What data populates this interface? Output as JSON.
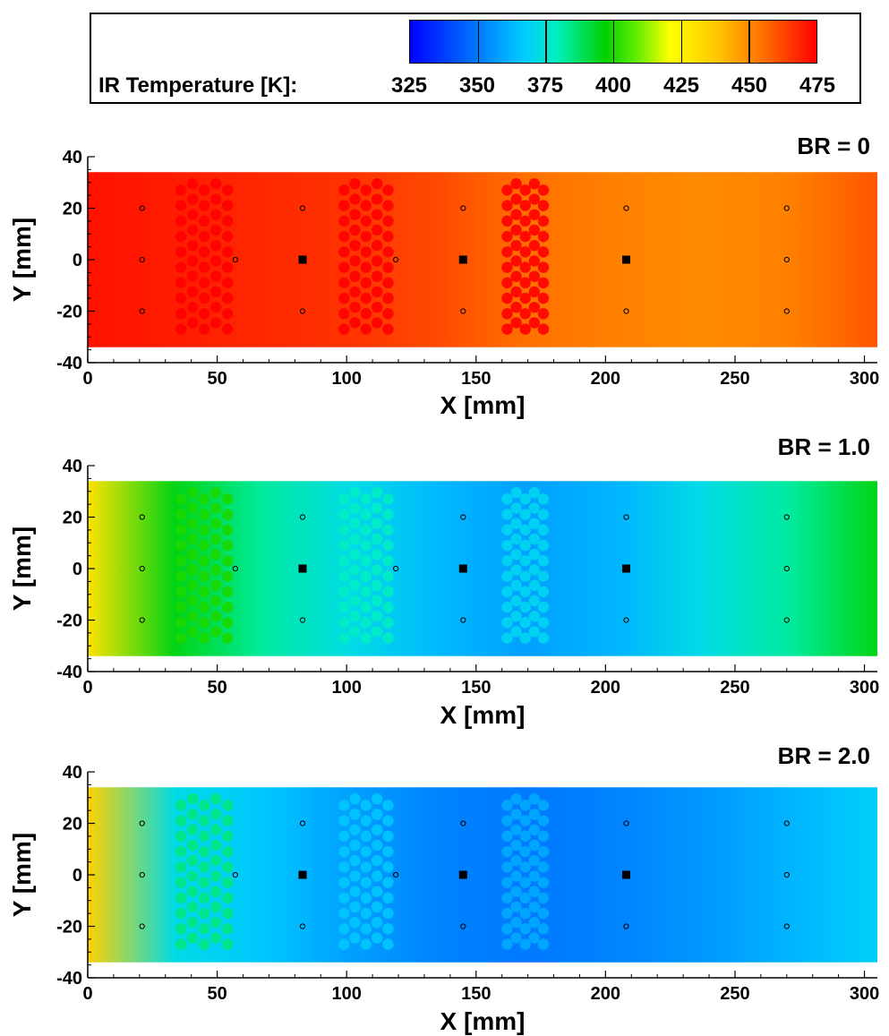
{
  "legend": {
    "title": "IR Temperature [K]:",
    "ticks": [
      "325",
      "350",
      "375",
      "400",
      "425",
      "450",
      "475"
    ],
    "range": [
      325,
      475
    ]
  },
  "chart_data": [
    {
      "type": "heatmap",
      "title": "BR = 0",
      "xlabel": "X [mm]",
      "ylabel": "Y [mm]",
      "xlim": [
        0,
        305
      ],
      "ylim": [
        -40,
        40
      ],
      "xticks": [
        "0",
        "50",
        "100",
        "150",
        "200",
        "250",
        "300"
      ],
      "yticks": [
        "40",
        "20",
        "0",
        "-20",
        "-40"
      ],
      "base_temperature_K": [
        472,
        470,
        468,
        466,
        462,
        455,
        452,
        450,
        452,
        460
      ],
      "hole_array_temperature_K": 475,
      "hole_arrays_x": [
        [
          34,
          56
        ],
        [
          97,
          118
        ],
        [
          160,
          178
        ]
      ],
      "square_markers_x": [
        83,
        145,
        208
      ],
      "circle_markers": [
        [
          21,
          20
        ],
        [
          21,
          0
        ],
        [
          21,
          -20
        ],
        [
          57,
          0
        ],
        [
          83,
          20
        ],
        [
          83,
          -20
        ],
        [
          119,
          0
        ],
        [
          145,
          20
        ],
        [
          145,
          -20
        ],
        [
          208,
          20
        ],
        [
          208,
          -20
        ],
        [
          270,
          20
        ],
        [
          270,
          0
        ],
        [
          270,
          -20
        ]
      ]
    },
    {
      "type": "heatmap",
      "title": "BR = 1.0",
      "xlabel": "X [mm]",
      "ylabel": "Y [mm]",
      "xlim": [
        0,
        305
      ],
      "ylim": [
        -40,
        40
      ],
      "xticks": [
        "0",
        "50",
        "100",
        "150",
        "200",
        "250",
        "300"
      ],
      "yticks": [
        "40",
        "20",
        "0",
        "-20",
        "-40"
      ],
      "base_temperature_K": [
        430,
        395,
        382,
        372,
        363,
        358,
        362,
        372,
        382,
        395
      ],
      "hole_array_temperature_K": [
        400,
        378,
        370
      ],
      "hole_arrays_x": [
        [
          34,
          56
        ],
        [
          97,
          118
        ],
        [
          160,
          178
        ]
      ],
      "square_markers_x": [
        83,
        145,
        208
      ],
      "circle_markers": [
        [
          21,
          20
        ],
        [
          21,
          0
        ],
        [
          21,
          -20
        ],
        [
          57,
          0
        ],
        [
          83,
          20
        ],
        [
          83,
          -20
        ],
        [
          119,
          0
        ],
        [
          145,
          20
        ],
        [
          145,
          -20
        ],
        [
          208,
          20
        ],
        [
          208,
          -20
        ],
        [
          270,
          20
        ],
        [
          270,
          0
        ],
        [
          270,
          -20
        ]
      ]
    },
    {
      "type": "heatmap",
      "title": "BR = 2.0",
      "xlabel": "X [mm]",
      "ylabel": "Y [mm]",
      "xlim": [
        0,
        305
      ],
      "ylim": [
        -40,
        40
      ],
      "xticks": [
        "0",
        "50",
        "100",
        "150",
        "200",
        "250",
        "300"
      ],
      "yticks": [
        "40",
        "20",
        "0",
        "-20",
        "-40"
      ],
      "base_temperature_K": [
        435,
        372,
        366,
        358,
        352,
        350,
        352,
        356,
        362,
        368
      ],
      "hole_array_temperature_K": [
        385,
        366,
        360
      ],
      "hole_arrays_x": [
        [
          34,
          56
        ],
        [
          97,
          118
        ],
        [
          160,
          178
        ]
      ],
      "square_markers_x": [
        83,
        145,
        208
      ],
      "circle_markers": [
        [
          21,
          20
        ],
        [
          21,
          0
        ],
        [
          21,
          -20
        ],
        [
          57,
          0
        ],
        [
          83,
          20
        ],
        [
          83,
          -20
        ],
        [
          119,
          0
        ],
        [
          145,
          20
        ],
        [
          145,
          -20
        ],
        [
          208,
          20
        ],
        [
          208,
          -20
        ],
        [
          270,
          20
        ],
        [
          270,
          0
        ],
        [
          270,
          -20
        ]
      ]
    }
  ]
}
